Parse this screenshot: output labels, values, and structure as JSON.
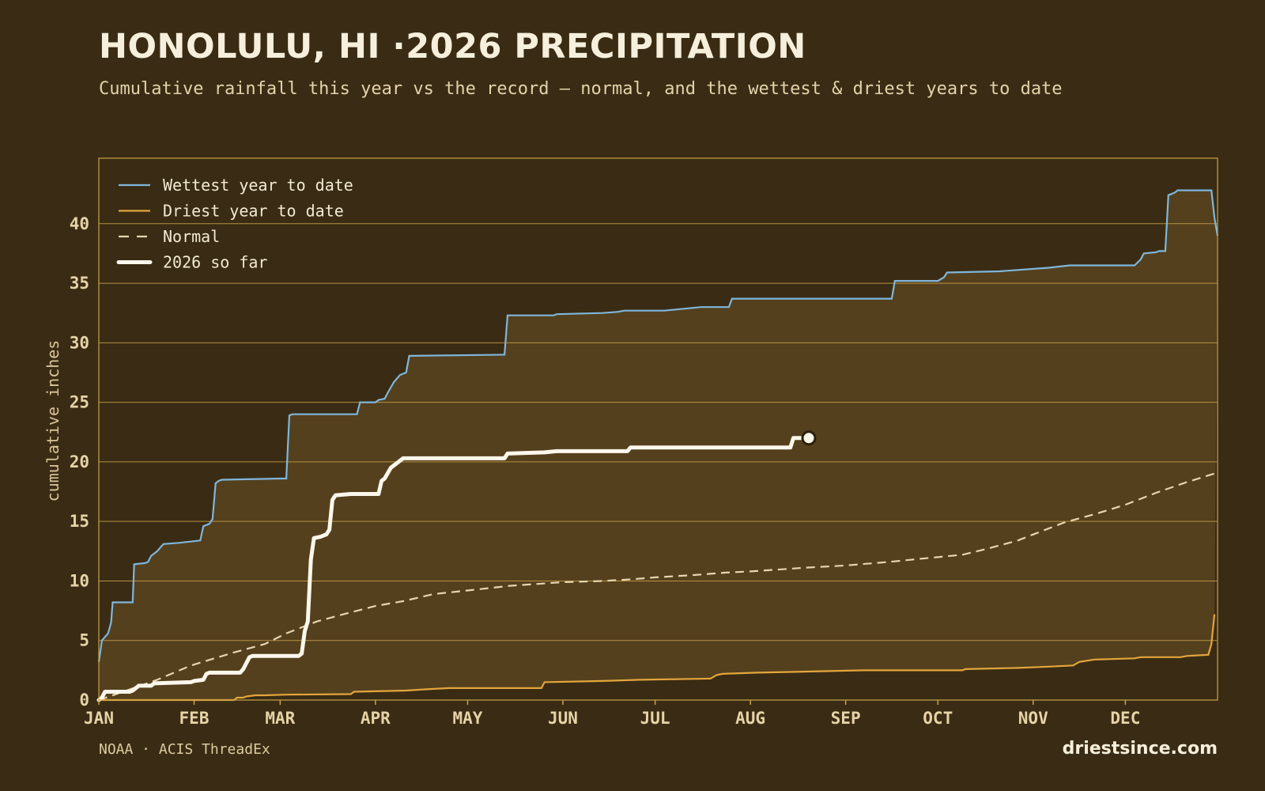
{
  "header": {
    "title": "HONOLULU, HI ·2026 PRECIPITATION",
    "subtitle": "Cumulative rainfall this year vs the record — normal, and the wettest & driest years to date"
  },
  "footer": {
    "source": "NOAA · ACIS ThreadEx",
    "brand": "driestsince.com"
  },
  "colors": {
    "background": "#3a2c14",
    "band_fill": "#54401d",
    "gridline": "#c9a14a",
    "wettest": "#7fb6dc",
    "driest": "#e3a63c",
    "normal": "#e6d6b0",
    "current": "#fbf7ec"
  },
  "chart_data": {
    "type": "line",
    "title": "HONOLULU, HI ·2026 PRECIPITATION",
    "ylabel": "cumulative inches",
    "xlabel": "",
    "x_unit": "day of year",
    "xlim": [
      1,
      365
    ],
    "ylim": [
      0,
      45
    ],
    "yticks": [
      0,
      5,
      10,
      15,
      20,
      25,
      30,
      35,
      40
    ],
    "month_ticks": [
      {
        "label": "JAN",
        "day": 1
      },
      {
        "label": "FEB",
        "day": 32
      },
      {
        "label": "MAR",
        "day": 60
      },
      {
        "label": "APR",
        "day": 91
      },
      {
        "label": "MAY",
        "day": 121
      },
      {
        "label": "JUN",
        "day": 152
      },
      {
        "label": "JUL",
        "day": 182
      },
      {
        "label": "AUG",
        "day": 213
      },
      {
        "label": "SEP",
        "day": 244
      },
      {
        "label": "OCT",
        "day": 274
      },
      {
        "label": "NOV",
        "day": 305
      },
      {
        "label": "DEC",
        "day": 335
      }
    ],
    "grid": true,
    "legend_position": "top-left",
    "shaded_band": "between driest and wettest year to date",
    "series": [
      {
        "name": "Wettest year to date",
        "key": "wettest",
        "style": "solid",
        "points": [
          [
            1,
            3.2
          ],
          [
            2,
            5.0
          ],
          [
            4,
            5.6
          ],
          [
            5,
            6.5
          ],
          [
            5.5,
            8.2
          ],
          [
            12,
            8.2
          ],
          [
            12.5,
            11.4
          ],
          [
            16,
            11.5
          ],
          [
            17,
            11.6
          ],
          [
            18,
            12.1
          ],
          [
            20,
            12.5
          ],
          [
            22,
            13.1
          ],
          [
            27,
            13.2
          ],
          [
            34,
            13.4
          ],
          [
            35,
            14.6
          ],
          [
            37,
            14.8
          ],
          [
            38,
            15.2
          ],
          [
            39,
            18.2
          ],
          [
            40,
            18.4
          ],
          [
            41,
            18.5
          ],
          [
            60,
            18.6
          ],
          [
            62,
            18.6
          ],
          [
            63,
            23.9
          ],
          [
            64,
            24.0
          ],
          [
            85,
            24.0
          ],
          [
            86,
            25.0
          ],
          [
            91,
            25.0
          ],
          [
            92,
            25.2
          ],
          [
            94,
            25.3
          ],
          [
            95,
            25.8
          ],
          [
            97,
            26.7
          ],
          [
            99,
            27.3
          ],
          [
            101,
            27.5
          ],
          [
            102,
            28.9
          ],
          [
            133,
            29.0
          ],
          [
            134,
            32.3
          ],
          [
            149,
            32.3
          ],
          [
            150,
            32.4
          ],
          [
            165,
            32.5
          ],
          [
            170,
            32.6
          ],
          [
            172,
            32.7
          ],
          [
            185,
            32.7
          ],
          [
            193,
            32.9
          ],
          [
            197,
            33.0
          ],
          [
            206,
            33.0
          ],
          [
            207,
            33.7
          ],
          [
            238,
            33.7
          ],
          [
            259,
            33.7
          ],
          [
            260,
            35.2
          ],
          [
            274,
            35.2
          ],
          [
            276,
            35.5
          ],
          [
            277,
            35.9
          ],
          [
            294,
            36.0
          ],
          [
            310,
            36.3
          ],
          [
            317,
            36.5
          ],
          [
            338,
            36.5
          ],
          [
            340,
            37.0
          ],
          [
            341,
            37.5
          ],
          [
            345,
            37.6
          ],
          [
            346,
            37.7
          ],
          [
            348,
            37.7
          ],
          [
            349,
            42.4
          ],
          [
            351,
            42.6
          ],
          [
            352,
            42.8
          ],
          [
            362,
            42.8
          ],
          [
            363,
            42.8
          ],
          [
            364,
            40.5
          ],
          [
            365,
            39.0
          ]
        ]
      },
      {
        "name": "Driest year to date",
        "key": "driest",
        "style": "solid",
        "points": [
          [
            1,
            0
          ],
          [
            45,
            0
          ],
          [
            46,
            0.2
          ],
          [
            48,
            0.2
          ],
          [
            49,
            0.3
          ],
          [
            52,
            0.4
          ],
          [
            55,
            0.4
          ],
          [
            62,
            0.45
          ],
          [
            83,
            0.5
          ],
          [
            84,
            0.7
          ],
          [
            101,
            0.8
          ],
          [
            107,
            0.9
          ],
          [
            115,
            1.0
          ],
          [
            128,
            1.0
          ],
          [
            145,
            1.0
          ],
          [
            146,
            1.5
          ],
          [
            165,
            1.6
          ],
          [
            177,
            1.7
          ],
          [
            200,
            1.8
          ],
          [
            202,
            2.1
          ],
          [
            204,
            2.2
          ],
          [
            215,
            2.3
          ],
          [
            233,
            2.4
          ],
          [
            250,
            2.5
          ],
          [
            282,
            2.5
          ],
          [
            283,
            2.6
          ],
          [
            300,
            2.7
          ],
          [
            310,
            2.8
          ],
          [
            318,
            2.9
          ],
          [
            320,
            3.2
          ],
          [
            325,
            3.4
          ],
          [
            338,
            3.5
          ],
          [
            340,
            3.6
          ],
          [
            353,
            3.6
          ],
          [
            355,
            3.7
          ],
          [
            362,
            3.8
          ],
          [
            363,
            4.7
          ],
          [
            364,
            7.2
          ]
        ]
      },
      {
        "name": "Normal",
        "key": "normal",
        "style": "dashed",
        "points": [
          [
            1,
            0
          ],
          [
            10,
            0.8
          ],
          [
            20,
            1.7
          ],
          [
            31,
            2.9
          ],
          [
            45,
            4.0
          ],
          [
            55,
            4.7
          ],
          [
            62,
            5.6
          ],
          [
            72,
            6.6
          ],
          [
            82,
            7.3
          ],
          [
            91,
            7.9
          ],
          [
            100,
            8.3
          ],
          [
            110,
            8.9
          ],
          [
            121,
            9.2
          ],
          [
            135,
            9.6
          ],
          [
            152,
            9.9
          ],
          [
            165,
            10.0
          ],
          [
            175,
            10.15
          ],
          [
            182,
            10.3
          ],
          [
            195,
            10.5
          ],
          [
            205,
            10.7
          ],
          [
            213,
            10.8
          ],
          [
            230,
            11.1
          ],
          [
            244,
            11.3
          ],
          [
            258,
            11.6
          ],
          [
            270,
            11.9
          ],
          [
            282,
            12.2
          ],
          [
            290,
            12.7
          ],
          [
            300,
            13.4
          ],
          [
            305,
            13.9
          ],
          [
            315,
            14.9
          ],
          [
            325,
            15.6
          ],
          [
            335,
            16.4
          ],
          [
            345,
            17.4
          ],
          [
            355,
            18.3
          ],
          [
            365,
            19.1
          ]
        ]
      },
      {
        "name": "2026 so far",
        "key": "current",
        "style": "thick",
        "points": [
          [
            1,
            0
          ],
          [
            2,
            0.2
          ],
          [
            3,
            0.7
          ],
          [
            11,
            0.7
          ],
          [
            12,
            0.8
          ],
          [
            14,
            1.2
          ],
          [
            18,
            1.2
          ],
          [
            19,
            1.4
          ],
          [
            31,
            1.5
          ],
          [
            32,
            1.6
          ],
          [
            35,
            1.7
          ],
          [
            36,
            2.2
          ],
          [
            37,
            2.3
          ],
          [
            47,
            2.3
          ],
          [
            48,
            2.6
          ],
          [
            50,
            3.6
          ],
          [
            51,
            3.7
          ],
          [
            66,
            3.7
          ],
          [
            67,
            3.9
          ],
          [
            68,
            5.8
          ],
          [
            69,
            6.6
          ],
          [
            70,
            11.8
          ],
          [
            71,
            13.6
          ],
          [
            73,
            13.7
          ],
          [
            75,
            13.9
          ],
          [
            76,
            14.3
          ],
          [
            77,
            16.8
          ],
          [
            78,
            17.2
          ],
          [
            83,
            17.3
          ],
          [
            92,
            17.3
          ],
          [
            93,
            18.4
          ],
          [
            94,
            18.6
          ],
          [
            96,
            19.5
          ],
          [
            99,
            20.1
          ],
          [
            100,
            20.3
          ],
          [
            133,
            20.3
          ],
          [
            134,
            20.7
          ],
          [
            146,
            20.8
          ],
          [
            150,
            20.9
          ],
          [
            173,
            20.9
          ],
          [
            174,
            21.2
          ],
          [
            196,
            21.2
          ],
          [
            226,
            21.2
          ],
          [
            227,
            22.0
          ],
          [
            232,
            22.0
          ]
        ]
      }
    ],
    "current_marker": {
      "day": 232,
      "value": 22.0
    }
  }
}
